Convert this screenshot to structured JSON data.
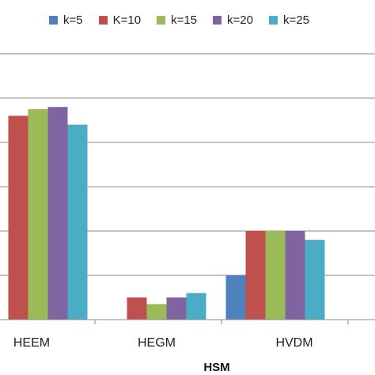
{
  "chart_data": {
    "type": "bar",
    "title": "",
    "xlabel": "HSM",
    "ylabel": "",
    "categories": [
      "HEEM",
      "HEGM",
      "HVDM"
    ],
    "series": [
      {
        "name": "k=5",
        "color": "#4f81bd",
        "values": [
          0,
          0,
          1
        ]
      },
      {
        "name": "K=10",
        "color": "#c0504d",
        "values": [
          4.6,
          0.5,
          2
        ]
      },
      {
        "name": "k=15",
        "color": "#9bbb59",
        "values": [
          4.75,
          0.35,
          2
        ]
      },
      {
        "name": "k=20",
        "color": "#8064a2",
        "values": [
          4.8,
          0.5,
          2
        ]
      },
      {
        "name": "k=25",
        "color": "#4bacc6",
        "values": [
          4.4,
          0.6,
          1.8
        ]
      }
    ],
    "ylim": [
      0,
      6
    ],
    "grid": true,
    "legend_position": "top"
  }
}
